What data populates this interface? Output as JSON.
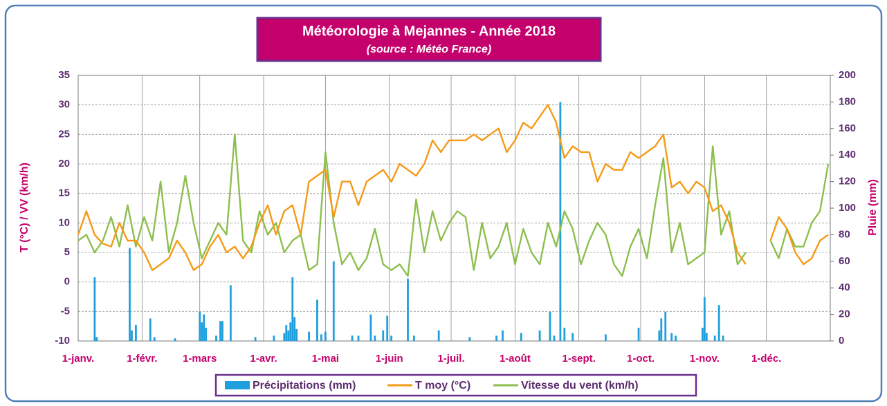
{
  "chart_data": {
    "type": "combo",
    "title": "Météorologie à Mejannes - Année 2018",
    "subtitle": "(source : Météo France)",
    "ylabel": "T (°C) / VV (km/h)",
    "y2label": "Pluie (mm)",
    "xlim": [
      0,
      365
    ],
    "xticks": [
      {
        "value": 0,
        "label": "1-janv."
      },
      {
        "value": 31,
        "label": "1-févr."
      },
      {
        "value": 59,
        "label": "1-mars"
      },
      {
        "value": 90,
        "label": "1-avr."
      },
      {
        "value": 120,
        "label": "1-mai"
      },
      {
        "value": 151,
        "label": "1-juin"
      },
      {
        "value": 181,
        "label": "1-juil."
      },
      {
        "value": 212,
        "label": "1-août"
      },
      {
        "value": 243,
        "label": "1-sept."
      },
      {
        "value": 273,
        "label": "1-oct."
      },
      {
        "value": 304,
        "label": "1-nov."
      },
      {
        "value": 334,
        "label": "1-déc."
      }
    ],
    "ylim": [
      -10,
      35
    ],
    "yticks": [
      -10,
      -5,
      0,
      5,
      10,
      15,
      20,
      25,
      30,
      35
    ],
    "y2lim": [
      0,
      200
    ],
    "y2ticks": [
      0,
      20,
      40,
      60,
      80,
      100,
      120,
      140,
      160,
      180,
      200
    ],
    "grid": true,
    "x": [
      0,
      4,
      8,
      12,
      16,
      20,
      24,
      28,
      32,
      36,
      40,
      44,
      48,
      52,
      56,
      60,
      64,
      68,
      72,
      76,
      80,
      84,
      88,
      92,
      96,
      100,
      104,
      108,
      112,
      116,
      120,
      124,
      128,
      132,
      136,
      140,
      144,
      148,
      152,
      156,
      160,
      164,
      168,
      172,
      176,
      180,
      184,
      188,
      192,
      196,
      200,
      204,
      208,
      212,
      216,
      220,
      224,
      228,
      232,
      236,
      240,
      244,
      248,
      252,
      256,
      260,
      264,
      268,
      272,
      276,
      280,
      284,
      288,
      292,
      296,
      300,
      304,
      308,
      312,
      316,
      320,
      324,
      328,
      332,
      336,
      340,
      344,
      348,
      352,
      356,
      360,
      364
    ],
    "series": [
      {
        "name": "Précipitations (mm)",
        "kind": "bar",
        "axis": "y2",
        "color": "#1f9fdc",
        "x": [
          8,
          9,
          25,
          26,
          28,
          35,
          37,
          47,
          59,
          60,
          61,
          62,
          67,
          69,
          70,
          74,
          86,
          95,
          100,
          101,
          102,
          103,
          104,
          105,
          106,
          112,
          116,
          118,
          120,
          124,
          133,
          136,
          142,
          144,
          148,
          150,
          152,
          160,
          163,
          175,
          190,
          203,
          206,
          215,
          224,
          229,
          231,
          234,
          236,
          240,
          256,
          272,
          282,
          283,
          285,
          288,
          290,
          303,
          304,
          305,
          309,
          311,
          313
        ],
        "values": [
          48,
          3,
          70,
          8,
          12,
          17,
          3,
          2,
          22,
          14,
          20,
          10,
          4,
          15,
          15,
          42,
          3,
          4,
          6,
          12,
          8,
          14,
          48,
          18,
          9,
          7,
          31,
          5,
          7,
          60,
          4,
          4,
          20,
          4,
          8,
          19,
          4,
          47,
          4,
          8,
          3,
          4,
          8,
          6,
          8,
          22,
          4,
          180,
          10,
          6,
          5,
          10,
          8,
          17,
          22,
          6,
          4,
          10,
          33,
          6,
          4,
          27,
          4
        ]
      },
      {
        "name": "T moy (°C)",
        "kind": "line",
        "color": "#f59a16",
        "values": [
          8,
          12,
          8,
          6.5,
          6,
          10,
          7,
          7,
          5,
          2,
          3,
          4,
          7,
          5,
          2,
          3,
          6,
          8,
          5,
          6,
          4,
          6,
          10,
          13,
          8,
          12,
          13,
          8,
          17,
          18,
          19,
          11,
          17,
          17,
          13,
          17,
          18,
          19,
          17,
          20,
          19,
          18,
          20,
          24,
          22,
          24,
          24,
          24,
          25,
          24,
          25,
          26,
          22,
          24,
          27,
          26,
          28,
          30,
          27,
          21,
          23,
          22,
          22,
          17,
          20,
          19,
          19,
          22,
          21,
          22,
          23,
          25,
          16,
          17,
          15,
          17,
          16,
          12,
          13,
          10,
          5,
          3,
          null,
          null,
          7,
          11,
          9,
          5,
          3,
          4,
          7,
          8
        ]
      },
      {
        "name": "Vitesse du vent (km/h)",
        "kind": "line",
        "color": "#8cbf4e",
        "values": [
          7,
          8,
          5,
          7,
          11,
          6,
          13,
          6,
          11,
          7,
          17,
          5,
          10,
          18,
          10,
          4,
          7,
          10,
          8,
          25,
          7,
          5,
          12,
          8,
          10,
          5,
          7,
          8,
          2,
          3,
          22,
          10,
          3,
          5,
          2,
          4,
          9,
          3,
          2,
          3,
          1,
          14,
          5,
          12,
          7,
          10,
          12,
          11,
          2,
          10,
          4,
          6,
          10,
          3,
          9,
          5,
          3,
          10,
          6,
          12,
          9,
          3,
          7,
          10,
          8,
          3,
          1,
          6,
          9,
          4,
          13,
          21,
          5,
          10,
          3,
          4,
          5,
          23,
          8,
          12,
          3,
          5,
          null,
          null,
          7,
          4,
          9,
          6,
          6,
          10,
          12,
          20
        ]
      }
    ]
  }
}
